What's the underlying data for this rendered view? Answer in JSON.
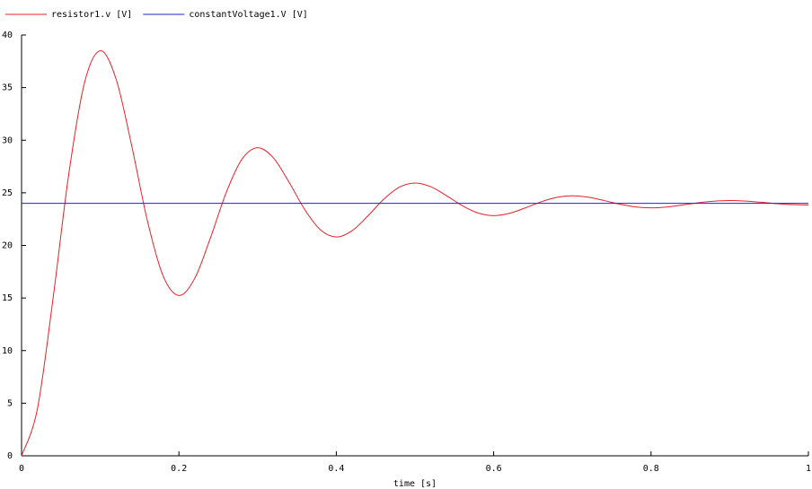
{
  "chart_data": {
    "type": "line",
    "x_label": "time [s]",
    "xlim": [
      0,
      1
    ],
    "ylim": [
      0,
      40
    ],
    "xticks": [
      0,
      0.2,
      0.4,
      0.6,
      0.8,
      1
    ],
    "yticks": [
      0,
      5,
      10,
      15,
      20,
      25,
      30,
      35,
      40
    ],
    "grid": false,
    "legend": "top-left",
    "series": [
      {
        "name": "resistor1.v [V]",
        "color": "#e8202a",
        "x": [
          0,
          0.02,
          0.04,
          0.06,
          0.08,
          0.1,
          0.12,
          0.14,
          0.16,
          0.18,
          0.2,
          0.22,
          0.24,
          0.26,
          0.28,
          0.3,
          0.32,
          0.34,
          0.36,
          0.38,
          0.4,
          0.42,
          0.44,
          0.46,
          0.48,
          0.5,
          0.52,
          0.54,
          0.56,
          0.58,
          0.6,
          0.62,
          0.64,
          0.66,
          0.68,
          0.7,
          0.72,
          0.74,
          0.76,
          0.78,
          0.8,
          0.82,
          0.84,
          0.86,
          0.88,
          0.9,
          0.92,
          0.94,
          0.96,
          0.98,
          1
        ],
        "values": [
          0,
          4.4,
          14.94,
          26.77,
          35.46,
          38.5,
          35.84,
          29.47,
          22.32,
          17.08,
          15.24,
          16.85,
          20.7,
          25.01,
          28.18,
          29.29,
          28.32,
          26.0,
          23.39,
          21.47,
          20.8,
          21.39,
          22.79,
          24.37,
          25.53,
          25.93,
          25.58,
          24.73,
          23.78,
          23.08,
          22.83,
          23.05,
          23.56,
          24.13,
          24.56,
          24.71,
          24.58,
          24.27,
          23.92,
          23.66,
          23.57,
          23.65,
          23.84,
          24.05,
          24.2,
          24.26,
          24.21,
          24.1,
          23.97,
          23.88,
          23.84
        ]
      },
      {
        "name": "constantVoltage1.V [V]",
        "color": "#2020d0",
        "x": [
          0,
          1
        ],
        "values": [
          24,
          24
        ]
      }
    ]
  }
}
